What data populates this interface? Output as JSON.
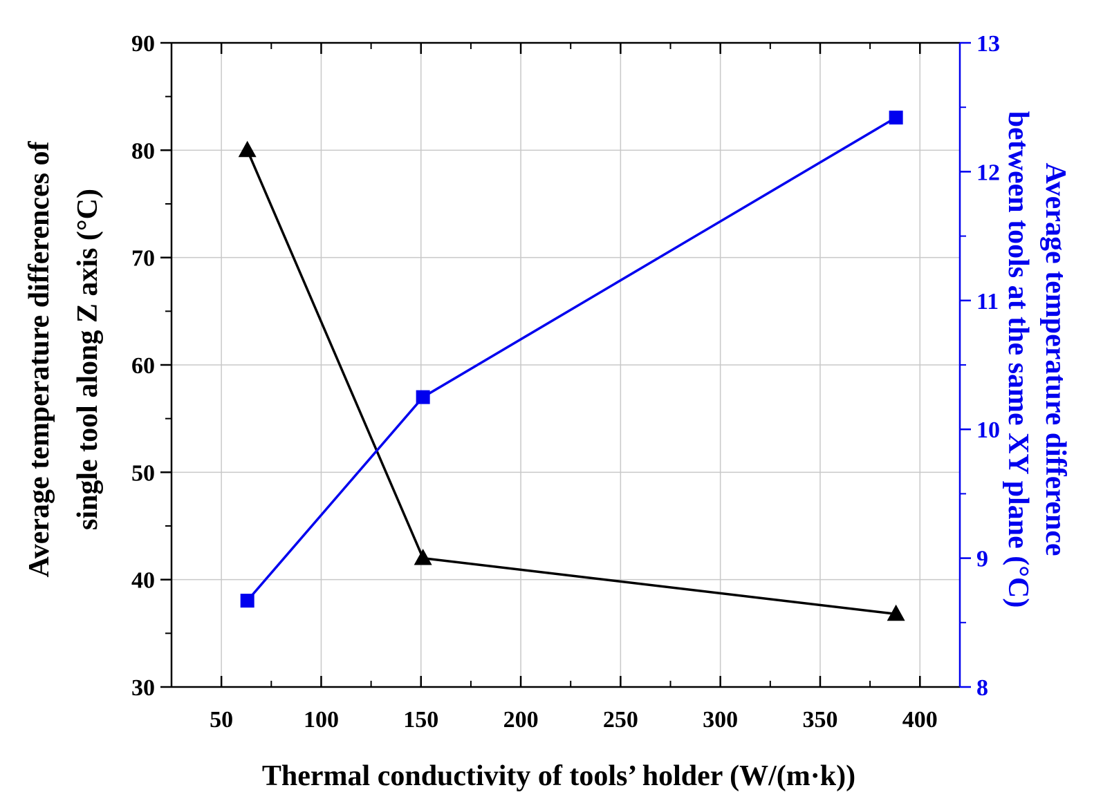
{
  "chart_data": {
    "type": "line",
    "title": "",
    "xlabel": "Thermal conductivity of tools’ holder (W/(m·k))",
    "ylabel_left": [
      "Average temperature differences of",
      "single tool along Z axis  (°C)"
    ],
    "ylabel_right": [
      "Average temperature difference",
      "between tools at the same XY plane (°C)"
    ],
    "xlim": [
      25,
      420
    ],
    "ylim_left": [
      30,
      90
    ],
    "ylim_right": [
      8,
      13
    ],
    "x_ticks": [
      "50",
      "100",
      "150",
      "200",
      "250",
      "300",
      "350",
      "400"
    ],
    "y_left_ticks": [
      "30",
      "40",
      "50",
      "60",
      "70",
      "80",
      "90"
    ],
    "y_right_ticks": [
      "8",
      "9",
      "10",
      "11",
      "12",
      "13"
    ],
    "grid": true,
    "series": [
      {
        "name": "Average temperature differences of single tool along Z axis",
        "axis": "left",
        "marker": "triangle",
        "color": "#000000",
        "x": [
          63,
          151,
          388
        ],
        "values": [
          80,
          42,
          36.8
        ]
      },
      {
        "name": "Average temperature difference between tools at the same XY plane",
        "axis": "right",
        "marker": "square",
        "color": "#0000ee",
        "x": [
          63,
          151,
          388
        ],
        "values": [
          8.67,
          10.25,
          12.42
        ]
      }
    ]
  }
}
